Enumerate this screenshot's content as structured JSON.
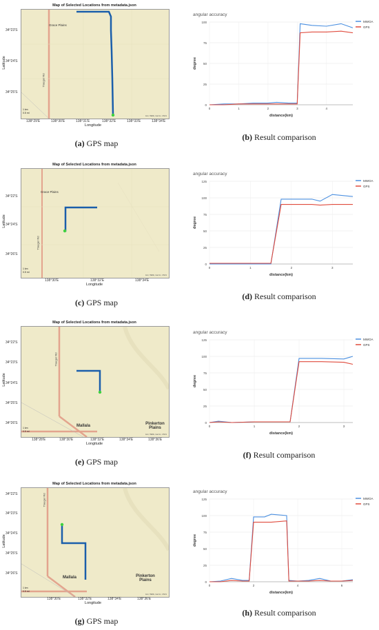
{
  "panels": [
    {
      "map": {
        "title": "Map of Selected Locations from metadata.json",
        "ylabel": "Latitude",
        "xlabel": "Longitude",
        "yticks": [
          "34°23'S",
          "34°24'S",
          "34°25'S"
        ],
        "xticks": [
          "138°29'E",
          "138°30'E",
          "138°31'E",
          "138°32'E",
          "138°33'E",
          "138°34'E"
        ],
        "places": [
          "Grace Plains"
        ],
        "roads": [
          "Traeger Rd"
        ],
        "scale": [
          "1 km",
          "0.5 mi"
        ]
      },
      "caption_left": {
        "letter": "(a)",
        "text": " GPS map"
      },
      "caption_right": {
        "letter": "(b)",
        "text": " Result comparison"
      },
      "chart_data": {
        "type": "line",
        "title": "angular accuracy",
        "xlabel": "distance(km)",
        "ylabel": "degree",
        "xlim": [
          0,
          4.9
        ],
        "ylim": [
          0,
          100
        ],
        "yticks": [
          0,
          25,
          50,
          75,
          100
        ],
        "xticks": [
          0,
          1,
          2,
          3,
          4
        ],
        "legend": "top-right",
        "series": [
          {
            "name": "MWOA",
            "color": "#4a8fe0",
            "x": [
              0,
              0.5,
              1,
              1.5,
              2,
              2.3,
              2.7,
              3.0,
              3.1,
              3.5,
              4.0,
              4.5,
              4.9
            ],
            "values": [
              0,
              1,
              1,
              2,
              2,
              3,
              2,
              2,
              98,
              96,
              95,
              98,
              93
            ]
          },
          {
            "name": "GPS",
            "color": "#e04a3c",
            "x": [
              0,
              0.5,
              1,
              1.5,
              2,
              2.3,
              2.7,
              3.0,
              3.1,
              3.5,
              4.0,
              4.5,
              4.9
            ],
            "values": [
              0,
              0,
              1,
              1,
              1,
              1,
              1,
              1,
              87,
              88,
              88,
              89,
              87
            ]
          }
        ]
      }
    },
    {
      "map": {
        "title": "Map of Selected Locations from metadata.json",
        "ylabel": "Latitude",
        "xlabel": "Longitude",
        "yticks": [
          "34°22'S",
          "34°24'S",
          "34°26'S"
        ],
        "xticks": [
          "138°30'E",
          "138°32'E",
          "138°34'E"
        ],
        "places": [
          "Grace Plains"
        ],
        "roads": [
          "Traeger Rd"
        ],
        "scale": [
          "1 km",
          "0.5 mi"
        ]
      },
      "caption_left": {
        "letter": "(c)",
        "text": " GPS map"
      },
      "caption_right": {
        "letter": "(d)",
        "text": " Result comparison"
      },
      "chart_data": {
        "type": "line",
        "title": "angular accuracy",
        "xlabel": "distance(km)",
        "ylabel": "degree",
        "xlim": [
          0,
          3.5
        ],
        "ylim": [
          0,
          125
        ],
        "yticks": [
          0,
          25,
          50,
          75,
          100,
          125
        ],
        "xticks": [
          0,
          1,
          2,
          3
        ],
        "legend": "top-right",
        "series": [
          {
            "name": "MWOA",
            "color": "#4a8fe0",
            "x": [
              0,
              0.5,
              1,
              1.5,
              1.75,
              2,
              2.5,
              2.7,
              3.0,
              3.5
            ],
            "values": [
              0,
              0,
              0,
              0,
              98,
              98,
              98,
              95,
              105,
              102
            ]
          },
          {
            "name": "GPS",
            "color": "#e04a3c",
            "x": [
              0,
              0.5,
              1,
              1.5,
              1.75,
              2,
              2.5,
              2.7,
              3.0,
              3.5
            ],
            "values": [
              1,
              1,
              1,
              1,
              90,
              90,
              90,
              89,
              90,
              90
            ]
          }
        ]
      }
    },
    {
      "map": {
        "title": "Map of Selected Locations from metadata.json",
        "ylabel": "Latitude",
        "xlabel": "Longitude",
        "yticks": [
          "34°22'S",
          "34°23'S",
          "34°24'S",
          "34°25'S",
          "34°26'S"
        ],
        "xticks": [
          "138°28'E",
          "138°30'E",
          "138°32'E",
          "138°34'E",
          "138°36'E"
        ],
        "places": [
          "Mallala",
          "Pinkerton Plains"
        ],
        "roads": [
          "Traeger Rd"
        ],
        "scale": [
          "1 km",
          "0.5 mi"
        ]
      },
      "caption_left": {
        "letter": "(e)",
        "text": " GPS map"
      },
      "caption_right": {
        "letter": "(f)",
        "text": " Result comparison"
      },
      "chart_data": {
        "type": "line",
        "title": "angular accuracy",
        "xlabel": "distance(km)",
        "ylabel": "degree",
        "xlim": [
          0,
          3.2
        ],
        "ylim": [
          0,
          125
        ],
        "yticks": [
          0,
          25,
          50,
          75,
          100,
          125
        ],
        "xticks": [
          0,
          1,
          2,
          3
        ],
        "legend": "top-right",
        "series": [
          {
            "name": "MWOA",
            "color": "#4a8fe0",
            "x": [
              0,
              0.2,
              0.5,
              1,
              1.5,
              1.8,
              2.0,
              2.5,
              3.0,
              3.2
            ],
            "values": [
              0,
              2,
              0,
              1,
              1,
              1,
              97,
              97,
              96,
              100
            ]
          },
          {
            "name": "GPS",
            "color": "#e04a3c",
            "x": [
              0,
              0.2,
              0.5,
              1,
              1.5,
              1.8,
              2.0,
              2.5,
              3.0,
              3.2
            ],
            "values": [
              0,
              1,
              0,
              1,
              1,
              1,
              92,
              92,
              91,
              88
            ]
          }
        ]
      }
    },
    {
      "map": {
        "title": "Map of Selected Locations from metadata.json",
        "ylabel": "Latitude",
        "xlabel": "Longitude",
        "yticks": [
          "34°22'S",
          "34°23'S",
          "34°24'S",
          "34°25'S",
          "34°26'S"
        ],
        "xticks": [
          "138°30'E",
          "138°32'E",
          "138°34'E",
          "138°36'E"
        ],
        "places": [
          "Mallala",
          "Pinkerton Plains"
        ],
        "roads": [
          "Traeger Rd"
        ],
        "scale": [
          "1 km",
          "0.5 mi"
        ]
      },
      "caption_left": {
        "letter": "(g)",
        "text": " GPS map"
      },
      "caption_right": {
        "letter": "(h)",
        "text": " Result comparison"
      },
      "chart_data": {
        "type": "line",
        "title": "angular accuracy",
        "xlabel": "distance(km)",
        "ylabel": "degree",
        "xlim": [
          0,
          6.5
        ],
        "ylim": [
          0,
          125
        ],
        "yticks": [
          0,
          25,
          50,
          75,
          100,
          125
        ],
        "xticks": [
          0,
          2,
          4,
          6
        ],
        "legend": "top-right",
        "series": [
          {
            "name": "MWOA",
            "color": "#4a8fe0",
            "x": [
              0,
              0.5,
              1,
              1.5,
              1.8,
              2.0,
              2.5,
              2.8,
              3.5,
              3.6,
              4,
              4.5,
              5,
              5.5,
              6,
              6.5
            ],
            "values": [
              0,
              1,
              5,
              2,
              2,
              98,
              98,
              102,
              100,
              2,
              1,
              2,
              5,
              1,
              1,
              3
            ]
          },
          {
            "name": "GPS",
            "color": "#e04a3c",
            "x": [
              0,
              0.5,
              1,
              1.5,
              1.8,
              2.0,
              2.5,
              2.8,
              3.5,
              3.6,
              4,
              4.5,
              5,
              5.5,
              6,
              6.5
            ],
            "values": [
              0,
              0,
              2,
              1,
              1,
              90,
              90,
              90,
              92,
              1,
              1,
              1,
              2,
              1,
              1,
              2
            ]
          }
        ]
      }
    }
  ]
}
